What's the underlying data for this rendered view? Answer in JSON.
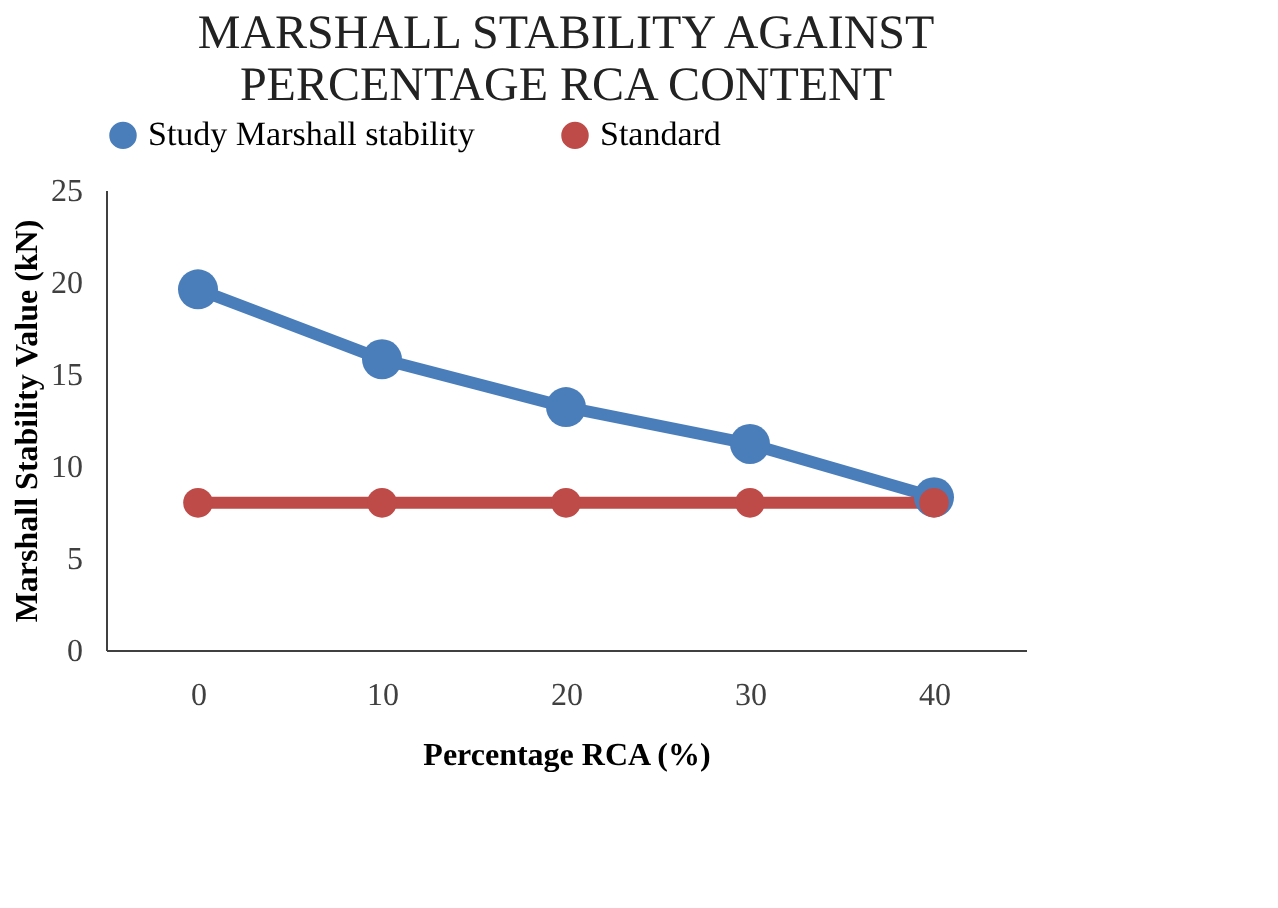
{
  "chart_data": {
    "type": "line",
    "title": "MARSHALL STABILITY AGAINST PERCENTAGE RCA CONTENT",
    "xlabel": "Percentage RCA (%)",
    "ylabel": "Marshall Stability Value (kN)",
    "categories": [
      "0",
      "10",
      "20",
      "30",
      "40"
    ],
    "series": [
      {
        "name": "Study Marshall stability",
        "color": "#4a7ebb",
        "values": [
          19.6,
          15.8,
          13.2,
          11.2,
          8.3
        ]
      },
      {
        "name": "Standard",
        "color": "#be4b48",
        "values": [
          8,
          8,
          8,
          8,
          8
        ]
      }
    ],
    "ylim": [
      0,
      25
    ],
    "yticks": [
      0,
      5,
      10,
      15,
      20,
      25
    ],
    "grid": false,
    "legend": "top",
    "marker": "circle",
    "line_style": "solid"
  }
}
